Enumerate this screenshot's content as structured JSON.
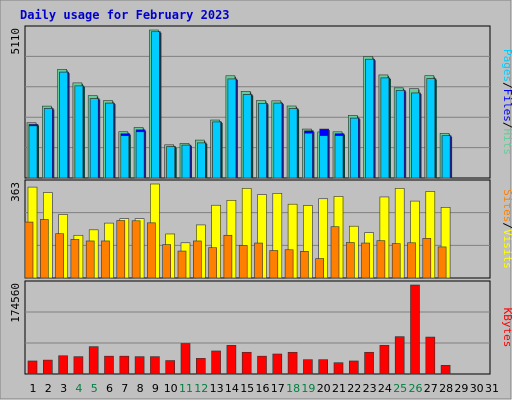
{
  "colors": {
    "background": "#c0c0c0",
    "plot_bg": "#c0c0c0",
    "grid": "#808080",
    "title": "#0000cc",
    "hits": "#66cc99",
    "files": "#0000ff",
    "pages": "#00ccff",
    "visits": "#ffff00",
    "sites": "#ff8000",
    "kbytes": "#ff0000",
    "weekend_label": "#008040",
    "weekday_label": "#000000"
  },
  "chart_data": {
    "type": "bar",
    "title": "Daily usage for February 2023",
    "days": [
      "1",
      "2",
      "3",
      "4",
      "5",
      "6",
      "7",
      "8",
      "9",
      "10",
      "11",
      "12",
      "13",
      "14",
      "15",
      "16",
      "17",
      "18",
      "19",
      "20",
      "21",
      "22",
      "23",
      "24",
      "25",
      "26",
      "27",
      "28",
      "29",
      "30",
      "31"
    ],
    "weekend_days": [
      4,
      5,
      11,
      12,
      18,
      19,
      25,
      26
    ],
    "panels": [
      {
        "name": "top",
        "ymax_label": "5110",
        "ymax": 5110,
        "series": [
          {
            "name": "Hits",
            "color": "#66cc99",
            "values": [
              1908,
              2482,
              3752,
              3284,
              2846,
              2675,
              1598,
              1745,
              5110,
              1146,
              1193,
              1309,
              2002,
              3530,
              2993,
              2677,
              2665,
              2486,
              1690,
              1590,
              1595,
              2163,
              4196,
              3559,
              3113,
              3087,
              3533,
              1541,
              null,
              null,
              null
            ]
          },
          {
            "name": "Files",
            "color": "#0000ff",
            "values": [
              1850,
              2400,
              3655,
              3180,
              2740,
              2585,
              1530,
              1665,
              5050,
              1082,
              1135,
              1212,
              1935,
              3420,
              2882,
              2577,
              2585,
              2395,
              1630,
              1690,
              1532,
              2066,
              4100,
              3455,
              3025,
              2935,
              3430,
              1460,
              null,
              null,
              null
            ]
          },
          {
            "name": "Pages",
            "color": "#00ccff",
            "values": [
              1800,
              2400,
              3655,
              3180,
              2740,
              2585,
              1460,
              1595,
              5050,
              1082,
              1135,
              1212,
              1935,
              3420,
              2882,
              2577,
              2585,
              2395,
              1545,
              1460,
              1462,
              2066,
              4100,
              3455,
              3025,
              2935,
              3430,
              1460,
              null,
              null,
              null
            ]
          }
        ]
      },
      {
        "name": "middle",
        "ymax_label": "363",
        "ymax": 363,
        "series": [
          {
            "name": "Visits",
            "color": "#ffff00",
            "values": [
              351,
              330,
              245,
              165,
              186,
              212,
              229,
              229,
              363,
              170,
              136,
              205,
              281,
              300,
              346,
              322,
              327,
              285,
              280,
              306,
              315,
              200,
              175,
              313,
              346,
              297,
              334,
              273,
              null,
              null,
              null
            ]
          },
          {
            "name": "Sites",
            "color": "#ff8000",
            "values": [
              216,
              226,
              171,
              149,
              143,
              143,
              222,
              221,
              213,
              129,
              104,
              143,
              117,
              165,
              126,
              135,
              106,
              109,
              103,
              75,
              198,
              137,
              135,
              144,
              133,
              136,
              153,
              120,
              null,
              null,
              null
            ]
          }
        ]
      },
      {
        "name": "bottom",
        "ymax_label": "174560",
        "ymax": 174560,
        "series": [
          {
            "name": "KBytes",
            "color": "#ff0000",
            "values": [
              25560,
              27270,
              35790,
              34090,
              53690,
              34960,
              34960,
              34090,
              34090,
              26420,
              59660,
              30680,
              45170,
              56240,
              42610,
              34960,
              39220,
              42610,
              28120,
              28120,
              22160,
              25560,
              42610,
              56240,
              73290,
              174560,
              72440,
              17040,
              null,
              null,
              null
            ]
          }
        ]
      }
    ],
    "axis_titles": {
      "top": [
        {
          "text": "Pages",
          "color": "#00ccff"
        },
        {
          "text": "/",
          "color": "#000000"
        },
        {
          "text": "Files",
          "color": "#0000ff"
        },
        {
          "text": "/",
          "color": "#000000"
        },
        {
          "text": "Hits",
          "color": "#66cc99"
        }
      ],
      "middle": [
        {
          "text": "Sites",
          "color": "#ff8000"
        },
        {
          "text": "/",
          "color": "#000000"
        },
        {
          "text": "Visits",
          "color": "#ffff00"
        }
      ],
      "bottom": [
        {
          "text": "KBytes",
          "color": "#ff0000"
        }
      ]
    }
  }
}
